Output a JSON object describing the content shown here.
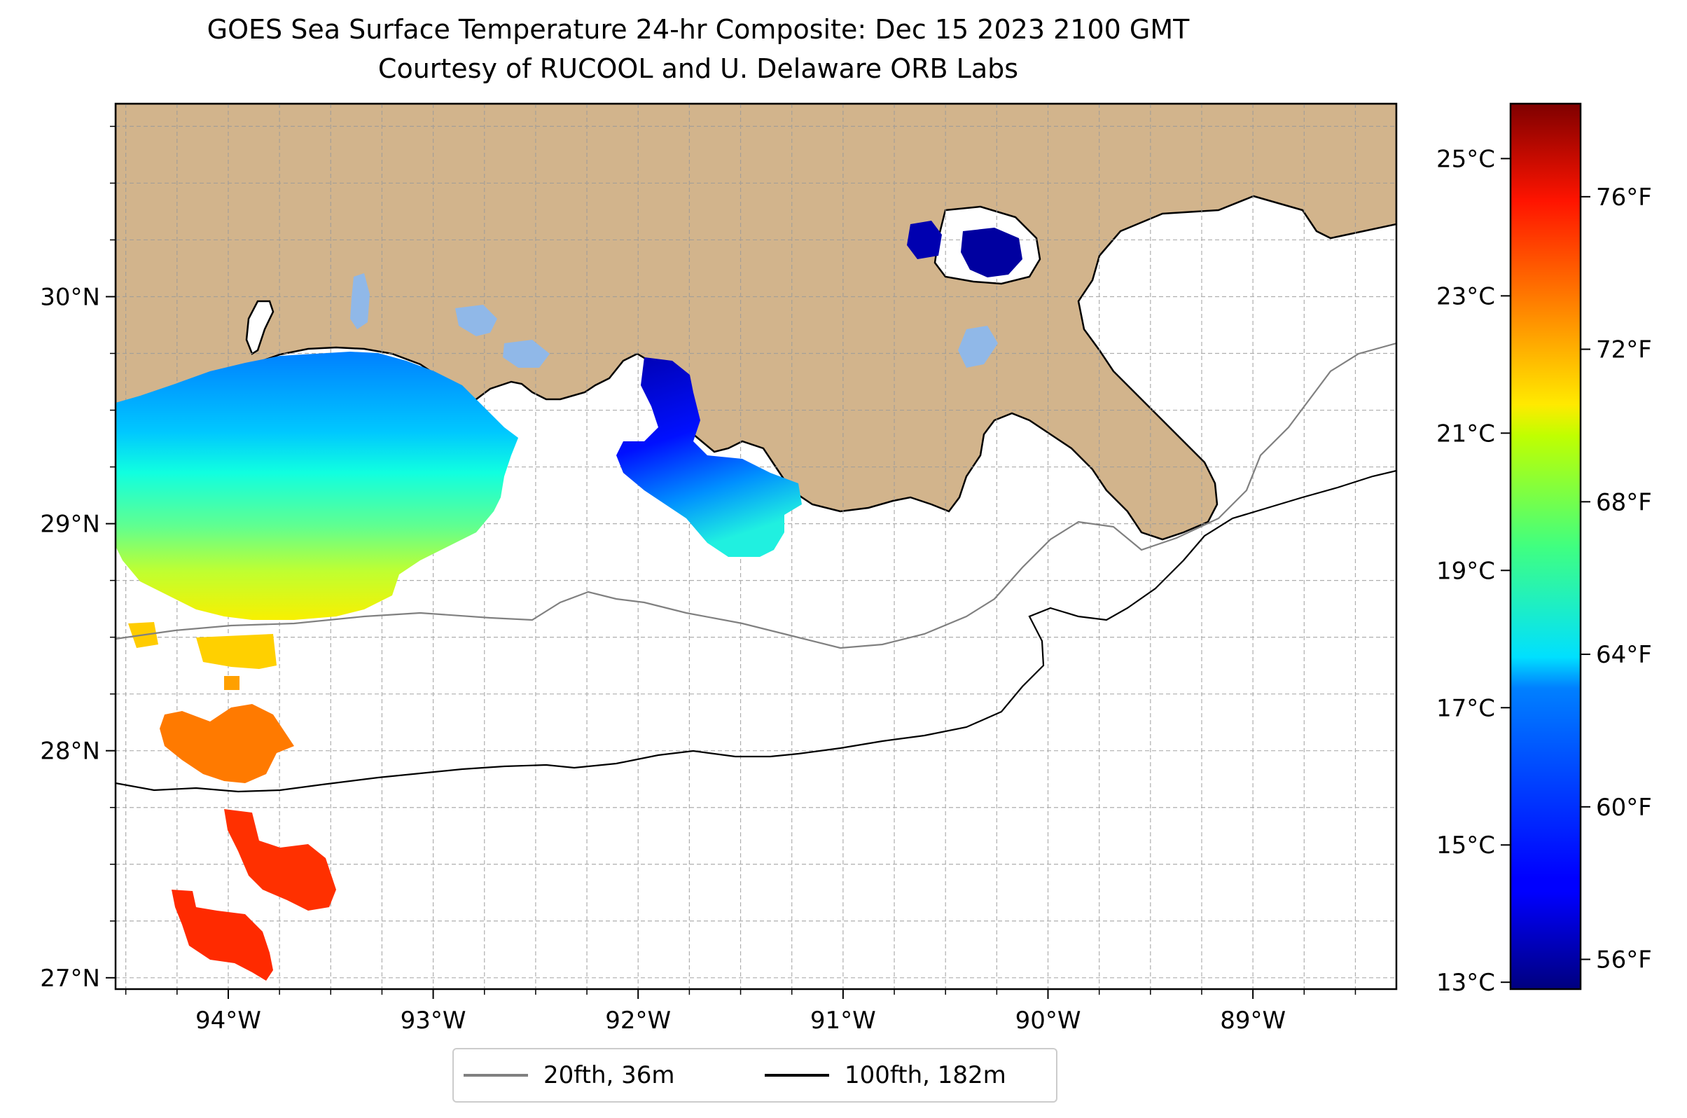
{
  "title": {
    "line1": "GOES Sea Surface Temperature 24-hr Composite: Dec 15 2023 2100 GMT",
    "line2": "Courtesy of RUCOOL and U. Delaware ORB Labs"
  },
  "map": {
    "extent": {
      "lon_min": -94.55,
      "lon_max": -88.3,
      "lat_min": 26.95,
      "lat_max": 30.85
    },
    "land_color": "#d2b48c",
    "water_color": "#ffffff",
    "gridlines": true,
    "lon_ticks": [
      {
        "value": -94,
        "label": "94°W"
      },
      {
        "value": -93,
        "label": "93°W"
      },
      {
        "value": -92,
        "label": "92°W"
      },
      {
        "value": -91,
        "label": "91°W"
      },
      {
        "value": -90,
        "label": "90°W"
      },
      {
        "value": -89,
        "label": "89°W"
      }
    ],
    "lat_ticks": [
      {
        "value": 30,
        "label": "30°N"
      },
      {
        "value": 29,
        "label": "29°N"
      },
      {
        "value": 28,
        "label": "28°N"
      },
      {
        "value": 27,
        "label": "27°N"
      }
    ]
  },
  "colorbar": {
    "colormap": "jet",
    "range_c": [
      12.9,
      25.8
    ],
    "celsius_ticks": [
      {
        "value": 25,
        "label": "25°C"
      },
      {
        "value": 23,
        "label": "23°C"
      },
      {
        "value": 21,
        "label": "21°C"
      },
      {
        "value": 19,
        "label": "19°C"
      },
      {
        "value": 17,
        "label": "17°C"
      },
      {
        "value": 15,
        "label": "15°C"
      },
      {
        "value": 13,
        "label": "13°C"
      }
    ],
    "fahrenheit_ticks": [
      {
        "value": 76,
        "label": "76°F"
      },
      {
        "value": 72,
        "label": "72°F"
      },
      {
        "value": 68,
        "label": "68°F"
      },
      {
        "value": 64,
        "label": "64°F"
      },
      {
        "value": 60,
        "label": "60°F"
      },
      {
        "value": 56,
        "label": "56°F"
      }
    ]
  },
  "legend": {
    "items": [
      {
        "label": "20fth, 36m",
        "color": "#808080"
      },
      {
        "label": "100fth, 182m",
        "color": "#000000"
      }
    ]
  },
  "sst_patches": [
    {
      "name": "west-louisiana-shelf",
      "approx_lon": [
        -94.55,
        -92.5
      ],
      "approx_lat": [
        28.6,
        29.8
      ],
      "temp_c_range": [
        15.5,
        20.5
      ]
    },
    {
      "name": "south-yellow-band",
      "approx_lon": [
        -94.5,
        -93.75
      ],
      "approx_lat": [
        28.4,
        28.6
      ],
      "temp_c_range": [
        21.0,
        22.0
      ]
    },
    {
      "name": "orange-patch",
      "approx_lon": [
        -94.3,
        -93.7
      ],
      "approx_lat": [
        27.85,
        28.2
      ],
      "temp_c_range": [
        23.0,
        23.5
      ]
    },
    {
      "name": "red-orange-patches",
      "approx_lon": [
        -94.3,
        -93.5
      ],
      "approx_lat": [
        26.95,
        27.75
      ],
      "temp_c_range": [
        24.0,
        24.5
      ]
    },
    {
      "name": "vermilion-atchafalaya",
      "approx_lon": [
        -92.05,
        -91.1
      ],
      "approx_lat": [
        28.85,
        29.75
      ],
      "temp_c_range": [
        13.2,
        17.5
      ]
    },
    {
      "name": "lake-pontchartrain",
      "approx_lon": [
        -90.5,
        -90.0
      ],
      "approx_lat": [
        30.2,
        30.35
      ],
      "temp_c_range": [
        13.0,
        13.5
      ]
    }
  ]
}
